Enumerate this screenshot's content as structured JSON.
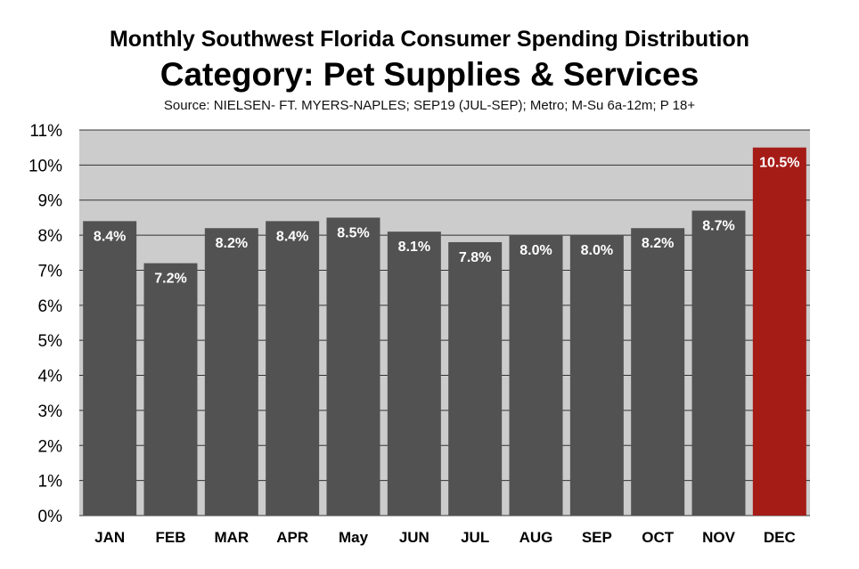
{
  "chart_data": {
    "type": "bar",
    "title": "Monthly Southwest Florida  Consumer Spending Distribution",
    "subtitle": "Category: Pet Supplies & Services",
    "source": "Source: NIELSEN-  FT. MYERS-NAPLES; SEP19 (JUL-SEP); Metro; M-Su 6a-12m; P 18+",
    "categories": [
      "JAN",
      "FEB",
      "MAR",
      "APR",
      "May",
      "JUN",
      "JUL",
      "AUG",
      "SEP",
      "OCT",
      "NOV",
      "DEC"
    ],
    "values": [
      8.4,
      7.2,
      8.2,
      8.4,
      8.5,
      8.1,
      7.8,
      8.0,
      8.0,
      8.2,
      8.7,
      10.5
    ],
    "data_labels": [
      "8.4%",
      "7.2%",
      "8.2%",
      "8.4%",
      "8.5%",
      "8.1%",
      "7.8%",
      "8.0%",
      "8.0%",
      "8.2%",
      "8.7%",
      "10.5%"
    ],
    "ylim": [
      0,
      11
    ],
    "yticks": [
      0,
      1,
      2,
      3,
      4,
      5,
      6,
      7,
      8,
      9,
      10,
      11
    ],
    "ytick_labels": [
      "0%",
      "1%",
      "2%",
      "3%",
      "4%",
      "5%",
      "6%",
      "7%",
      "8%",
      "9%",
      "10%",
      "11%"
    ],
    "grid": true,
    "legend": "none",
    "colors": {
      "bar": "#525252",
      "highlight": "#a51c17",
      "plot_background": "#cccccc",
      "grid": "#333333"
    },
    "highlight_index": 11
  }
}
